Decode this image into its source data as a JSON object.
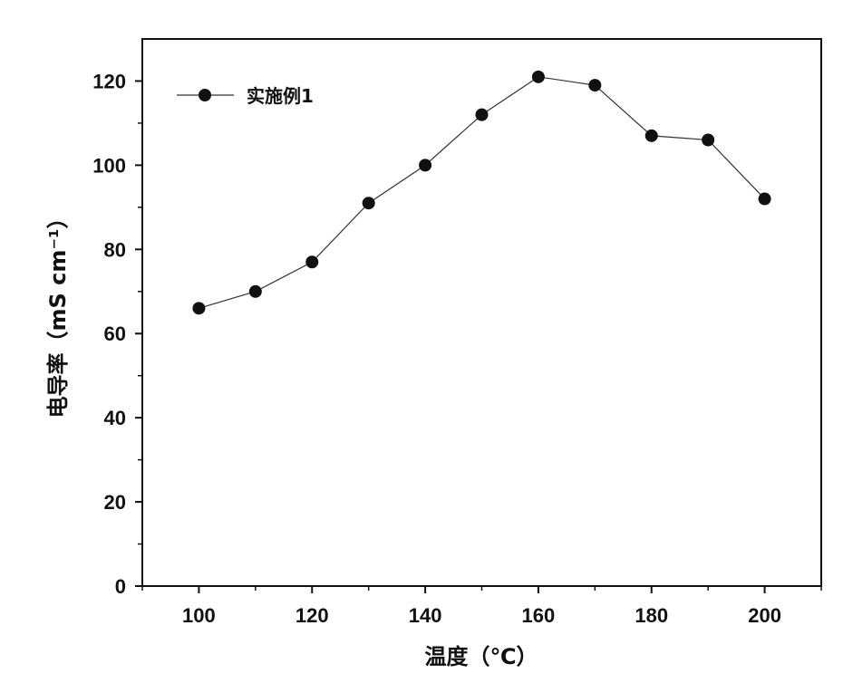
{
  "chart_data": {
    "type": "line",
    "x": [
      100,
      110,
      120,
      130,
      140,
      150,
      160,
      170,
      180,
      190,
      200
    ],
    "series": [
      {
        "name": "实施例1",
        "values": [
          66,
          70,
          77,
          91,
          100,
          112,
          121,
          119,
          107,
          106,
          92
        ]
      }
    ],
    "xlabel": "温度（℃）",
    "ylabel": "电导率（mS cm⁻¹）",
    "xlim": [
      90,
      210
    ],
    "ylim": [
      0,
      130
    ],
    "xticks": [
      100,
      120,
      140,
      160,
      180,
      200
    ],
    "yticks": [
      0,
      20,
      40,
      60,
      80,
      100,
      120
    ],
    "grid": false,
    "legend_position": "top-left",
    "colors": {
      "line": "#333333",
      "marker": "#111111"
    }
  }
}
